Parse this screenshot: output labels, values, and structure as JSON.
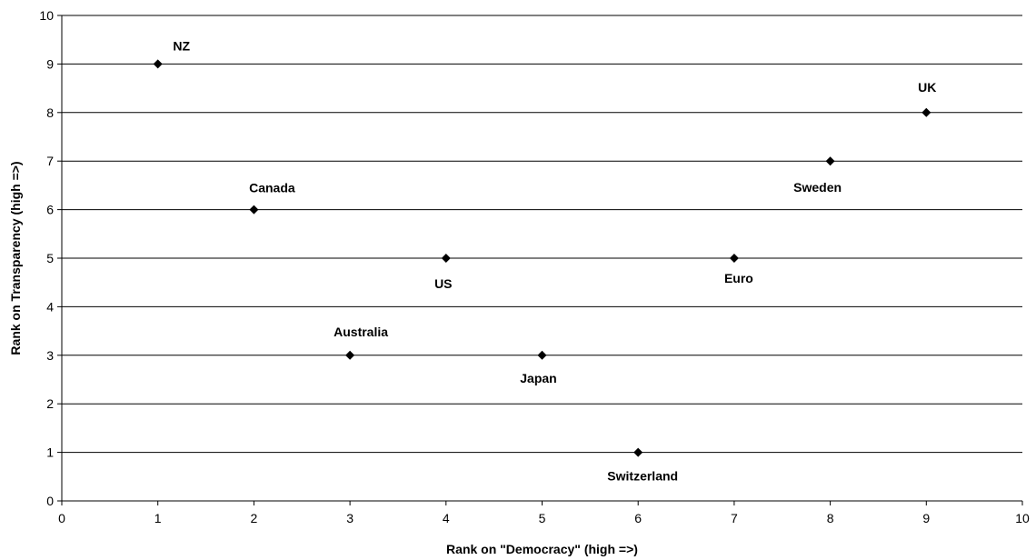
{
  "chart_data": {
    "type": "scatter",
    "title": "",
    "xlabel": "Rank on \"Democracy\"  (high =>)",
    "ylabel": "Rank on Transparency (high =>)",
    "xlim": [
      0,
      10
    ],
    "ylim": [
      0,
      10
    ],
    "x_ticks": [
      "0",
      "1",
      "2",
      "3",
      "4",
      "5",
      "6",
      "7",
      "8",
      "9",
      "10"
    ],
    "y_ticks": [
      "0",
      "1",
      "2",
      "3",
      "4",
      "5",
      "6",
      "7",
      "8",
      "9",
      "10"
    ],
    "grid": "horizontal",
    "legend": "none",
    "marker": "diamond",
    "marker_color": "#000000",
    "points": [
      {
        "label": "NZ",
        "x": 1,
        "y": 9
      },
      {
        "label": "Canada",
        "x": 2,
        "y": 6
      },
      {
        "label": "Australia",
        "x": 3,
        "y": 3
      },
      {
        "label": "US",
        "x": 4,
        "y": 5
      },
      {
        "label": "Japan",
        "x": 5,
        "y": 3
      },
      {
        "label": "Switzerland",
        "x": 6,
        "y": 1
      },
      {
        "label": "Euro",
        "x": 7,
        "y": 5
      },
      {
        "label": "Sweden",
        "x": 8,
        "y": 7
      },
      {
        "label": "UK",
        "x": 9,
        "y": 8
      }
    ]
  }
}
